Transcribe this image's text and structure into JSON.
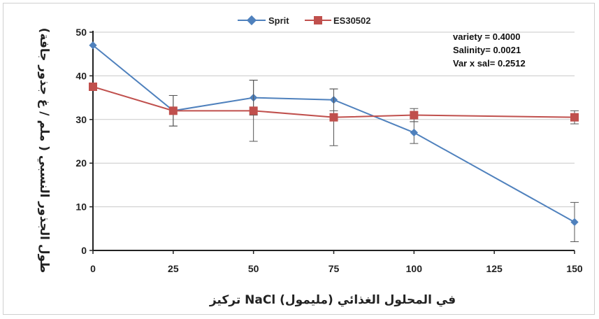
{
  "chart_data": {
    "type": "line",
    "xlabel": "تركيز NaCl في المحلول الغذائي (مليمول)",
    "ylabel": "طول الجذور النسبي ( ملم / غ جذور جافة)",
    "x_ticks": [
      0,
      25,
      50,
      75,
      100,
      125,
      150
    ],
    "y_ticks": [
      0,
      10,
      20,
      30,
      40,
      50
    ],
    "xlim": [
      0,
      150
    ],
    "ylim": [
      0,
      50
    ],
    "grid": "horizontal",
    "legend_position": "top-center",
    "annotations": [
      "variety = 0.4000",
      "Salinity= 0.0021",
      "Var x sal= 0.2512"
    ],
    "series": [
      {
        "name": "Sprit",
        "color": "#4f81bd",
        "marker": "diamond",
        "x": [
          0,
          25,
          50,
          75,
          100,
          150
        ],
        "values": [
          47,
          32,
          35,
          34.5,
          27,
          6.5
        ],
        "error": [
          0,
          3.5,
          4,
          2.5,
          2.5,
          4.5
        ]
      },
      {
        "name": "ES30502",
        "color": "#c0504d",
        "marker": "square",
        "x": [
          0,
          25,
          50,
          75,
          100,
          150
        ],
        "values": [
          37.5,
          32,
          32,
          30.5,
          31,
          30.5
        ],
        "error": [
          0,
          3.5,
          7,
          6.5,
          1.5,
          1.5
        ]
      }
    ]
  }
}
